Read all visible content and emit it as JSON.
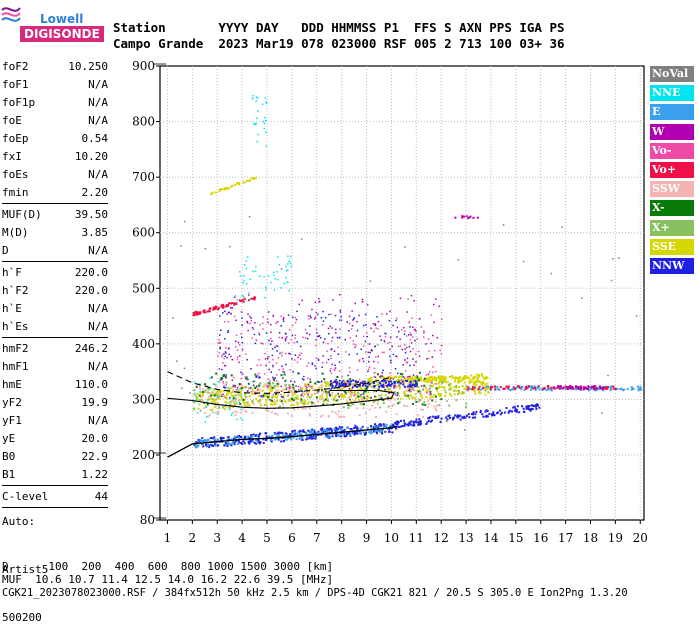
{
  "logo": {
    "line1": "Lowell",
    "line2": "DIGISONDE"
  },
  "header": {
    "row1": "Station       YYYY DAY   DDD HHMMSS P1  FFS S AXN PPS IGA PS",
    "row2": "Campo Grande  2023 Mar19 078 023000 RSF 005 2 713 100 03+ 36"
  },
  "params": [
    {
      "label": "foF2",
      "value": "10.250"
    },
    {
      "label": "foF1",
      "value": "N/A"
    },
    {
      "label": "foF1p",
      "value": "N/A"
    },
    {
      "label": "foE",
      "value": "N/A"
    },
    {
      "label": "foEp",
      "value": "0.54"
    },
    {
      "label": "fxI",
      "value": "10.20"
    },
    {
      "label": "foEs",
      "value": "N/A"
    },
    {
      "label": "fmin",
      "value": "2.20"
    },
    {
      "sep": true
    },
    {
      "label": "MUF(D)",
      "value": "39.50"
    },
    {
      "label": "M(D)",
      "value": "3.85"
    },
    {
      "label": "D",
      "value": "N/A"
    },
    {
      "sep": true
    },
    {
      "label": "h`F",
      "value": "220.0"
    },
    {
      "label": "h`F2",
      "value": "220.0"
    },
    {
      "label": "h`E",
      "value": "N/A"
    },
    {
      "label": "h`Es",
      "value": "N/A"
    },
    {
      "sep": true
    },
    {
      "label": "hmF2",
      "value": "246.2"
    },
    {
      "label": "hmF1",
      "value": "N/A"
    },
    {
      "label": "hmE",
      "value": "110.0"
    },
    {
      "label": "yF2",
      "value": "19.9"
    },
    {
      "label": "yF1",
      "value": "N/A"
    },
    {
      "label": "yE",
      "value": "20.0"
    },
    {
      "label": "B0",
      "value": "22.9"
    },
    {
      "label": "B1",
      "value": "1.22"
    },
    {
      "sep": true
    },
    {
      "label": "C-level",
      "value": "44"
    },
    {
      "sep": true
    }
  ],
  "auto": {
    "line1": "Auto:",
    "line2": "Artist5",
    "line3": "500200"
  },
  "legend": [
    {
      "label": "NoVal",
      "color": "#808080"
    },
    {
      "label": "NNE",
      "color": "#00e5ee"
    },
    {
      "label": "E",
      "color": "#3aa0ee"
    },
    {
      "label": "W",
      "color": "#b000b0"
    },
    {
      "label": "Vo-",
      "color": "#f04aa8"
    },
    {
      "label": "Vo+",
      "color": "#f01048"
    },
    {
      "label": "SSW",
      "color": "#f4b4b4"
    },
    {
      "label": "X-",
      "color": "#087a08"
    },
    {
      "label": "X+",
      "color": "#88c060"
    },
    {
      "label": "SSE",
      "color": "#d6d600"
    },
    {
      "label": "NNW",
      "color": "#2020e0"
    }
  ],
  "footer": {
    "line1": "D      100  200  400  600  800 1000 1500 3000 [km]",
    "line2": "MUF  10.6 10.7 11.4 12.5 14.0 16.2 22.6 39.5 [MHz]",
    "line3": "CGK21_2023078023000.RSF / 384fx512h 50 kHz 2.5 km / DPS-4D CGK21 821 / 20.5 S 305.0 E Ion2Png 1.3.20"
  },
  "chart_data": {
    "type": "scatter",
    "x_ticks": [
      "1",
      "2",
      "3",
      "4",
      "5",
      "6",
      "7",
      "8",
      "9",
      "10",
      "11",
      "12",
      "13",
      "14",
      "15",
      "16",
      "17",
      "18",
      "19",
      "20"
    ],
    "y_ticks": [
      "80",
      "200",
      "300",
      "400",
      "500",
      "600",
      "700",
      "800",
      "900"
    ],
    "xlim": [
      0.7,
      20.15
    ],
    "y_axis_breaks": [
      80,
      200,
      900
    ],
    "grid": true,
    "traces": [
      {
        "name": "o-trace",
        "points": [
          [
            1.0,
            196
          ],
          [
            2.0,
            220
          ],
          [
            3.0,
            224
          ],
          [
            4.0,
            228
          ],
          [
            5.0,
            230
          ],
          [
            6.0,
            233
          ],
          [
            7.0,
            237
          ],
          [
            8.0,
            241
          ],
          [
            9.0,
            245
          ],
          [
            10.0,
            249
          ],
          [
            10.25,
            252
          ]
        ]
      },
      {
        "name": "x-trace",
        "points": [
          [
            1.0,
            302
          ],
          [
            2.0,
            298
          ],
          [
            3.0,
            291
          ],
          [
            4.0,
            286
          ],
          [
            5.0,
            284
          ],
          [
            6.0,
            285
          ],
          [
            7.0,
            288
          ],
          [
            8.0,
            292
          ],
          [
            9.0,
            297
          ],
          [
            10.0,
            302
          ],
          [
            10.1,
            312
          ],
          [
            9.5,
            316
          ],
          [
            8.5,
            316
          ],
          [
            7.5,
            316
          ]
        ]
      },
      {
        "name": "hF-curve",
        "points": [
          [
            1.0,
            350
          ],
          [
            2.0,
            330
          ],
          [
            3.0,
            318
          ],
          [
            4.0,
            312
          ],
          [
            5.0,
            311
          ],
          [
            6.0,
            313
          ],
          [
            7.0,
            317
          ],
          [
            8.0,
            322
          ],
          [
            9.0,
            329
          ],
          [
            10.0,
            340
          ]
        ]
      }
    ]
  }
}
